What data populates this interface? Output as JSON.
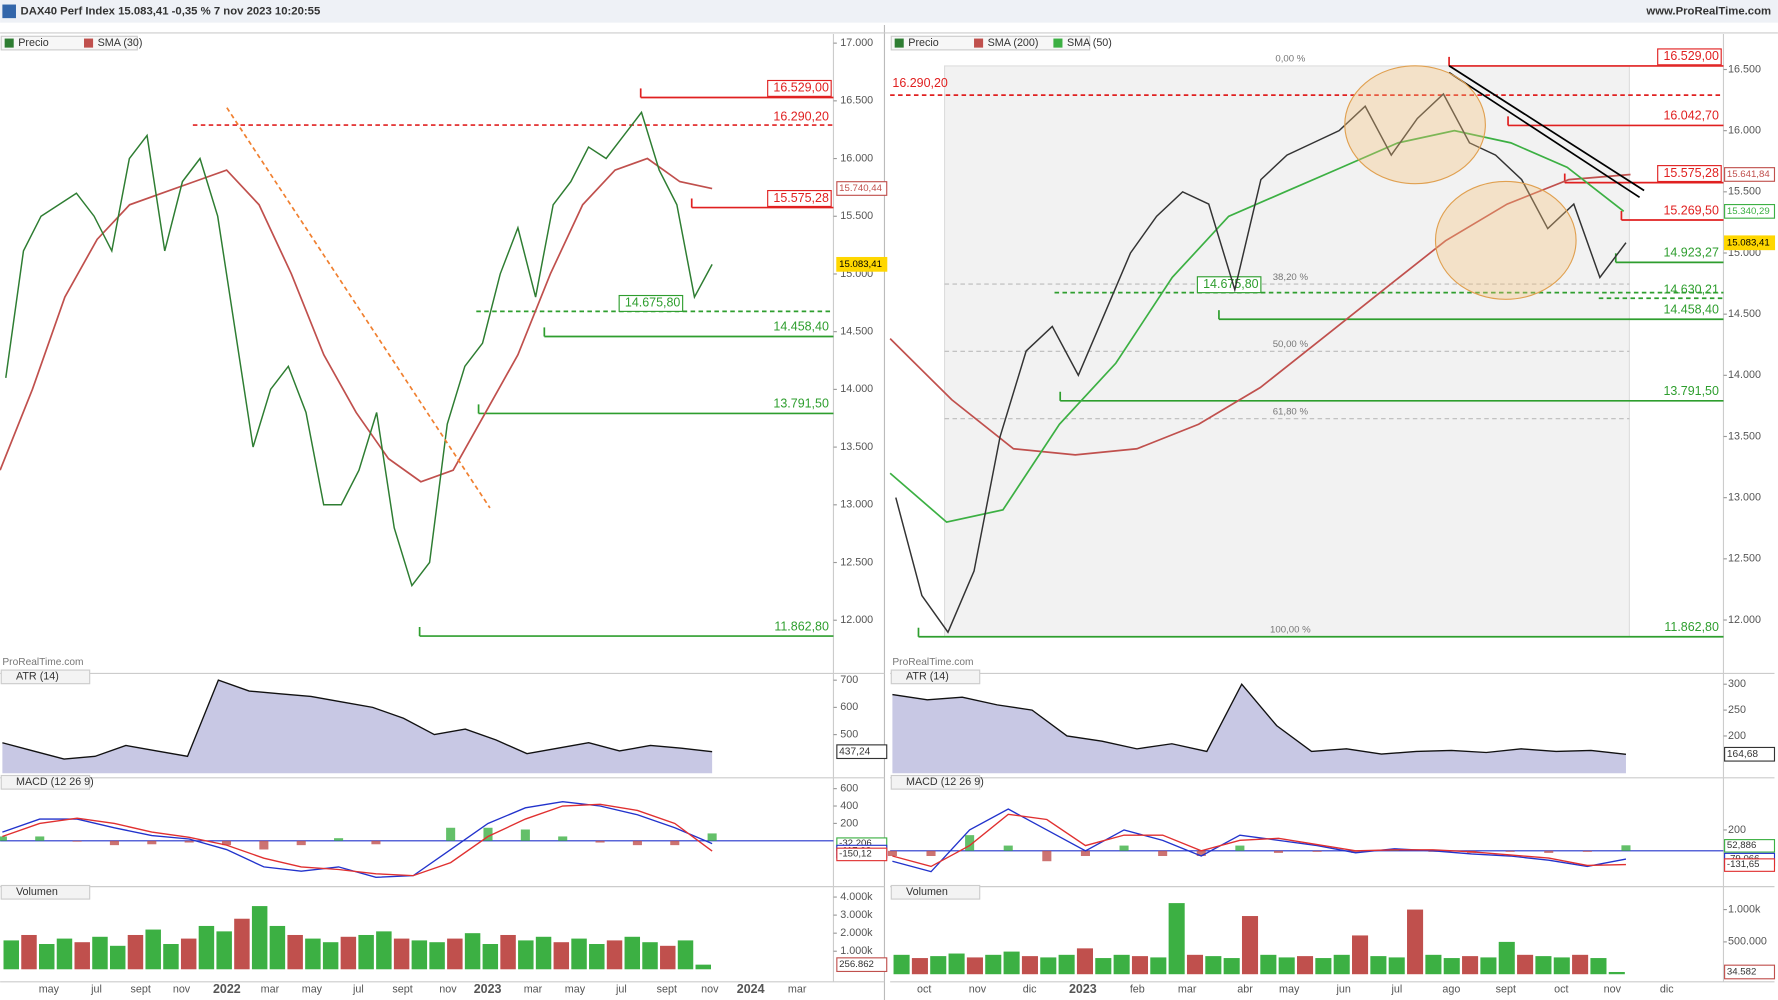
{
  "header": {
    "title": "DAX40 Perf Index 15.083,41 -0,35 % 7 nov 2023 10:20:55",
    "site": "www.ProRealTime.com"
  },
  "panels": [
    {
      "legend": [
        "Precio",
        "SMA (30)"
      ],
      "watermark": "ProRealTime.com",
      "months": [
        "may",
        "jul",
        "sept",
        "nov",
        "2022",
        "mar",
        "may",
        "jul",
        "sept",
        "nov",
        "2023",
        "mar",
        "may",
        "jul",
        "sept",
        "nov",
        "2024",
        "mar"
      ],
      "price": {
        "ylim": [
          11578,
          17079
        ],
        "yticks": [
          {
            "value": 17000,
            "label": "17.000"
          },
          {
            "value": 16500,
            "label": "16.500"
          },
          {
            "value": 16000,
            "label": "16.000"
          },
          {
            "value": 15500,
            "label": "15.500"
          },
          {
            "value": 15000,
            "label": "15.000"
          },
          {
            "value": 14500,
            "label": "14.500"
          },
          {
            "value": 14000,
            "label": "14.000"
          },
          {
            "value": 13500,
            "label": "13.500"
          },
          {
            "value": 13000,
            "label": "13.000"
          },
          {
            "value": 12500,
            "label": "12.500"
          },
          {
            "value": 12000,
            "label": "12.000"
          }
        ],
        "close": [
          14100,
          15200,
          15500,
          15600,
          15700,
          15500,
          15200,
          16000,
          16200,
          15200,
          15800,
          16000,
          15500,
          14500,
          13500,
          14000,
          14200,
          13800,
          13000,
          13000,
          13300,
          13800,
          12800,
          12300,
          12500,
          13700,
          14200,
          14400,
          15000,
          15400,
          14800,
          15600,
          15800,
          16100,
          16000,
          16200,
          16400,
          15900,
          15600,
          14800,
          15083.41
        ],
        "color": "#2e7d32",
        "sma": [
          {
            "name": "SMA (30)",
            "color": "#c0504d",
            "values": [
              13300,
              14000,
              14800,
              15300,
              15600,
              15700,
              15800,
              15900,
              15600,
              15000,
              14300,
              13800,
              13400,
              13200,
              13300,
              13800,
              14300,
              15000,
              15600,
              15900,
              16000,
              15800,
              15740.44
            ]
          }
        ],
        "levels": [
          {
            "value": 16529,
            "label": "16.529,00",
            "color": "#e02020",
            "dashed": false,
            "boxed": true
          },
          {
            "value": 16290.2,
            "label": "16.290,20",
            "color": "#e02020",
            "dashed": true,
            "boxed": false
          },
          {
            "value": 15575.28,
            "label": "15.575,28",
            "color": "#e02020",
            "dashed": false,
            "boxed": true
          },
          {
            "value": 14675.8,
            "label": "14.675,80",
            "color": "#2e9e2e",
            "dashed": true,
            "boxed": true
          },
          {
            "value": 14458.4,
            "label": "14.458,40",
            "color": "#2e9e2e",
            "dashed": false,
            "boxed": false
          },
          {
            "value": 13791.5,
            "label": "13.791,50",
            "color": "#2e9e2e",
            "dashed": false,
            "boxed": false
          },
          {
            "value": 11862.8,
            "label": "11.862,80",
            "color": "#2e9e2e",
            "dashed": false,
            "boxed": false
          }
        ],
        "axis_labels": [
          {
            "value": 15740.44,
            "label": "15.740,44",
            "color": "#c0504d"
          },
          {
            "value": 15083.41,
            "label": "15.083,41",
            "color": "#ffd700"
          }
        ]
      },
      "atr": {
        "title": "ATR (14)",
        "ylim": [
          358,
          708
        ],
        "yticks": [
          {
            "value": 700,
            "label": "700"
          },
          {
            "value": 600,
            "label": "600"
          },
          {
            "value": 500,
            "label": "500"
          }
        ],
        "values": [
          470,
          440,
          410,
          420,
          460,
          440,
          420,
          700,
          660,
          650,
          640,
          620,
          600,
          560,
          500,
          520,
          480,
          430,
          450,
          470,
          440,
          460,
          450,
          437.24
        ],
        "current": {
          "value": 437.24,
          "label": "437,24"
        }
      },
      "macd": {
        "title": "MACD (12 26 9)",
        "ylim": [
          -475,
          725
        ],
        "yticks": [
          {
            "value": 600,
            "label": "600"
          },
          {
            "value": 400,
            "label": "400"
          },
          {
            "value": 200,
            "label": "200"
          }
        ],
        "macd": [
          100,
          250,
          250,
          150,
          60,
          20,
          -100,
          -300,
          -350,
          -300,
          -420,
          -400,
          -100,
          200,
          380,
          450,
          400,
          300,
          150,
          -32.206
        ],
        "signal": [
          50,
          200,
          260,
          200,
          100,
          40,
          -50,
          -200,
          -300,
          -330,
          -380,
          -400,
          -250,
          50,
          250,
          400,
          420,
          350,
          200,
          -117.02
        ],
        "current": [
          {
            "value": -32.206,
            "label": "-32,206"
          },
          {
            "value": -117.02,
            "label": "-117,02"
          },
          {
            "value": -150.12,
            "label": "-150,12"
          }
        ]
      },
      "volume": {
        "title": "Volumen",
        "ylim": [
          -445,
          4578
        ],
        "yticks": [
          {
            "value": 4000,
            "label": "4.000k"
          },
          {
            "value": 3000,
            "label": "3.000k"
          },
          {
            "value": 2000,
            "label": "2.000k"
          },
          {
            "value": 1000,
            "label": "1.000k"
          }
        ],
        "values": [
          1600,
          1900,
          1400,
          1700,
          1500,
          1800,
          1300,
          1900,
          2200,
          1400,
          1700,
          2400,
          2100,
          2800,
          3500,
          2400,
          1900,
          1700,
          1500,
          1800,
          1900,
          2100,
          1700,
          1600,
          1500,
          1700,
          2000,
          1400,
          1900,
          1600,
          1800,
          1500,
          1700,
          1400,
          1600,
          1800,
          1500,
          1300,
          1600,
          256.862
        ],
        "current": {
          "value": 256.862,
          "label": "256.862"
        }
      }
    },
    {
      "legend": [
        "Precio",
        "SMA (200)",
        "SMA (50)"
      ],
      "watermark": "ProRealTime.com",
      "months": [
        "oct",
        "nov",
        "dic",
        "2023",
        "feb",
        "mar",
        "abr",
        "may",
        "jun",
        "jul",
        "ago",
        "sept",
        "oct",
        "nov",
        "dic"
      ],
      "price": {
        "ylim": [
          11600,
          16790
        ],
        "yticks": [
          {
            "value": 16500,
            "label": "16.500"
          },
          {
            "value": 16000,
            "label": "16.000"
          },
          {
            "value": 15500,
            "label": "15.500"
          },
          {
            "value": 15000,
            "label": "15.000"
          },
          {
            "value": 14500,
            "label": "14.500"
          },
          {
            "value": 14000,
            "label": "14.000"
          },
          {
            "value": 13500,
            "label": "13.500"
          },
          {
            "value": 13000,
            "label": "13.000"
          },
          {
            "value": 12500,
            "label": "12.500"
          },
          {
            "value": 12000,
            "label": "12.000"
          }
        ],
        "close": [
          13000,
          12200,
          11900,
          12400,
          13500,
          14200,
          14400,
          14000,
          14500,
          15000,
          15300,
          15500,
          15400,
          14700,
          15600,
          15800,
          15900,
          16000,
          16200,
          15800,
          16100,
          16300,
          15900,
          15800,
          15600,
          15200,
          15400,
          14800,
          15083.41
        ],
        "color": "#333333",
        "sma": [
          {
            "name": "SMA (200)",
            "color": "#c0504d",
            "values": [
              14300,
              13800,
              13400,
              13350,
              13400,
              13600,
              13900,
              14300,
              14700,
              15100,
              15400,
              15600,
              15641.84
            ]
          },
          {
            "name": "SMA (50)",
            "color": "#3cb043",
            "values": [
              13200,
              12800,
              12900,
              13600,
              14100,
              14800,
              15300,
              15500,
              15700,
              15900,
              16000,
              15900,
              15700,
              15340.29
            ]
          }
        ],
        "levels": [
          {
            "value": 16529,
            "label": "16.529,00",
            "color": "#e02020",
            "dashed": false,
            "boxed": true
          },
          {
            "value": 16290.2,
            "label": "16.290,20",
            "color": "#e02020",
            "dashed": true,
            "boxed": false
          },
          {
            "value": 16042.7,
            "label": "16.042,70",
            "color": "#e02020",
            "dashed": false,
            "boxed": false
          },
          {
            "value": 15575.28,
            "label": "15.575,28",
            "color": "#e02020",
            "dashed": false,
            "boxed": true
          },
          {
            "value": 15269.5,
            "label": "15.269,50",
            "color": "#e02020",
            "dashed": false,
            "boxed": false
          },
          {
            "value": 14923.27,
            "label": "14.923,27",
            "color": "#2e9e2e",
            "dashed": false,
            "boxed": false
          },
          {
            "value": 14675.8,
            "label": "14.675,80",
            "color": "#2e9e2e",
            "dashed": true,
            "boxed": true
          },
          {
            "value": 14630.21,
            "label": "14.630,21",
            "color": "#2e9e2e",
            "dashed": true,
            "boxed": false
          },
          {
            "value": 14458.4,
            "label": "14.458,40",
            "color": "#2e9e2e",
            "dashed": false,
            "boxed": false
          },
          {
            "value": 13791.5,
            "label": "13.791,50",
            "color": "#2e9e2e",
            "dashed": false,
            "boxed": false
          },
          {
            "value": 11862.8,
            "label": "11.862,80",
            "color": "#2e9e2e",
            "dashed": false,
            "boxed": false
          }
        ],
        "axis_labels": [
          {
            "value": 15641.84,
            "label": "15.641,84",
            "color": "#c0504d"
          },
          {
            "value": 15340.29,
            "label": "15.340,29",
            "color": "#3cb043"
          },
          {
            "value": 15083.41,
            "label": "15.083,41",
            "color": "#ffd700"
          }
        ],
        "fib": [
          {
            "value": 16529,
            "label": "0,00 %"
          },
          {
            "value": 14746.5,
            "label": "38,20 %"
          },
          {
            "value": 14195.9,
            "label": "50,00 %"
          },
          {
            "value": 13645.3,
            "label": "61,80 %"
          },
          {
            "value": 11862.8,
            "label": "100,00 %"
          }
        ]
      },
      "atr": {
        "title": "ATR (14)",
        "ylim": [
          128,
          312
        ],
        "yticks": [
          {
            "value": 300,
            "label": "300"
          },
          {
            "value": 250,
            "label": "250"
          },
          {
            "value": 200,
            "label": "200"
          }
        ],
        "values": [
          280,
          270,
          275,
          260,
          250,
          200,
          190,
          175,
          185,
          170,
          300,
          220,
          170,
          175,
          165,
          170,
          172,
          168,
          175,
          170,
          172,
          164.68
        ],
        "current": {
          "value": 164.68,
          "label": "164,68"
        }
      },
      "macd": {
        "title": "MACD (12 26 9)",
        "ylim": [
          -300,
          700
        ],
        "yticks": [
          {
            "value": 200,
            "label": "200"
          }
        ],
        "macd": [
          -100,
          -200,
          200,
          400,
          200,
          0,
          200,
          100,
          -50,
          150,
          100,
          50,
          -20,
          20,
          0,
          -30,
          -50,
          -90,
          -150,
          -79.066
        ],
        "signal": [
          -50,
          -150,
          50,
          350,
          300,
          50,
          150,
          150,
          0,
          100,
          120,
          60,
          0,
          10,
          10,
          -10,
          -40,
          -70,
          -140,
          -131.65
        ],
        "current": [
          {
            "value": 52.886,
            "label": "52,886"
          },
          {
            "value": -79.066,
            "label": "-79,066"
          },
          {
            "value": -131.65,
            "label": "-131,65"
          }
        ]
      },
      "volume": {
        "title": "Volumen",
        "ylim": [
          -48,
          1355
        ],
        "yticks": [
          {
            "value": 1000,
            "label": "1.000k"
          },
          {
            "value": 500,
            "label": "500.000"
          }
        ],
        "values": [
          300,
          250,
          280,
          320,
          260,
          300,
          350,
          280,
          260,
          300,
          400,
          250,
          300,
          280,
          260,
          1100,
          300,
          280,
          250,
          900,
          300,
          260,
          280,
          250,
          300,
          600,
          280,
          260,
          1000,
          300,
          250,
          280,
          260,
          500,
          300,
          280,
          260,
          300,
          250,
          34.582
        ],
        "current": {
          "value": 34.582,
          "label": "34.582"
        }
      }
    }
  ]
}
